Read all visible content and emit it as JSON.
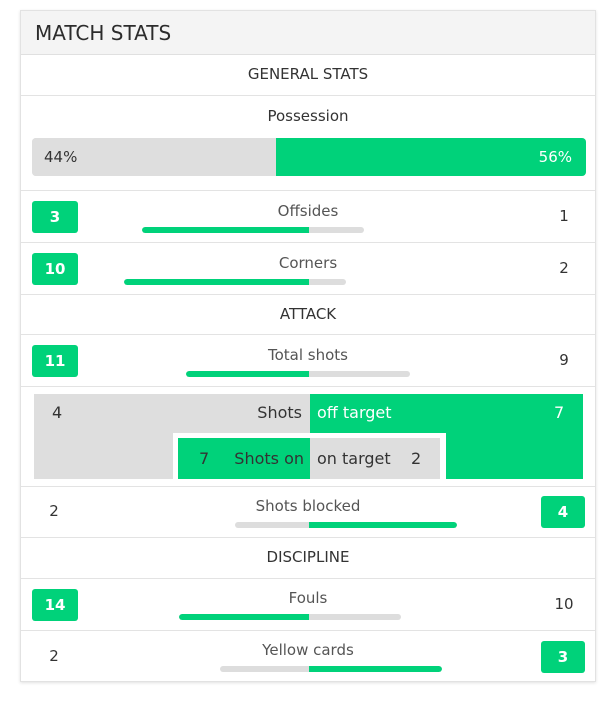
{
  "header": {
    "title": "MATCH STATS"
  },
  "colors": {
    "accent": "#00d27a",
    "track": "#dddddd"
  },
  "sections": {
    "general": "GENERAL STATS",
    "attack": "ATTACK",
    "discipline": "DISCIPLINE"
  },
  "possession": {
    "label": "Possession",
    "home": "44%",
    "away": "56%",
    "home_fraction": 0.44
  },
  "stats": {
    "offsides": {
      "label": "Offsides",
      "home": "3",
      "away": "1",
      "leader": "home"
    },
    "corners": {
      "label": "Corners",
      "home": "10",
      "away": "2",
      "leader": "home"
    },
    "total_shots": {
      "label": "Total shots",
      "home": "11",
      "away": "9",
      "leader": "home"
    },
    "shots_blocked": {
      "label": "Shots blocked",
      "home": "2",
      "away": "4",
      "leader": "away"
    },
    "fouls": {
      "label": "Fouls",
      "home": "14",
      "away": "10",
      "leader": "home"
    },
    "yellow_cards": {
      "label": "Yellow cards",
      "home": "2",
      "away": "3",
      "leader": "away"
    }
  },
  "shots_breakdown": {
    "off_target": {
      "home": "4",
      "label_left": "Shots",
      "label_right": "off target",
      "away": "7"
    },
    "on_target": {
      "home": "7",
      "label_left": "Shots on",
      "label_right": "on target",
      "away": "2"
    }
  }
}
